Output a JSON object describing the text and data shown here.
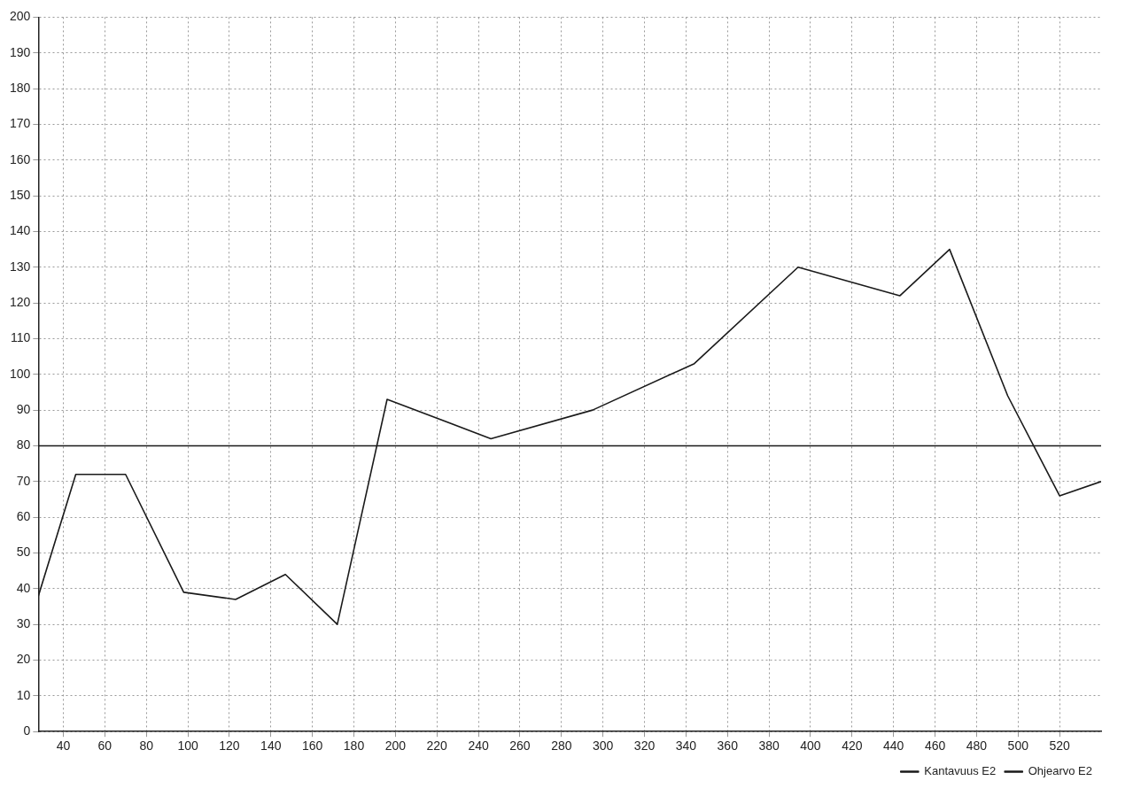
{
  "chart_data": {
    "type": "line",
    "xlim": [
      28,
      540
    ],
    "xticks": [
      40,
      60,
      80,
      100,
      120,
      140,
      160,
      180,
      200,
      220,
      240,
      260,
      280,
      300,
      320,
      340,
      360,
      380,
      400,
      420,
      440,
      460,
      480,
      500,
      520
    ],
    "ylim": [
      0,
      200
    ],
    "yticks": [
      0,
      10,
      20,
      30,
      40,
      50,
      60,
      70,
      80,
      90,
      100,
      110,
      120,
      130,
      140,
      150,
      160,
      170,
      180,
      190,
      200
    ],
    "grid": true,
    "legend": "bottom right",
    "marker": "none",
    "line_style": "solid",
    "series": [
      {
        "name": "Kantavuus E2",
        "color": "#1a1a1a",
        "x": [
          28,
          46,
          70,
          98,
          123,
          147,
          172,
          196,
          246,
          295,
          344,
          394,
          443,
          467,
          495,
          520,
          540
        ],
        "values": [
          38,
          72,
          72,
          39,
          37,
          44,
          30,
          93,
          82,
          90,
          103,
          130,
          122,
          135,
          94,
          66,
          70
        ]
      },
      {
        "name": "Ohjearvo E2",
        "color": "#1a1a1a",
        "x": [
          28,
          540
        ],
        "values": [
          80,
          80
        ]
      }
    ]
  }
}
